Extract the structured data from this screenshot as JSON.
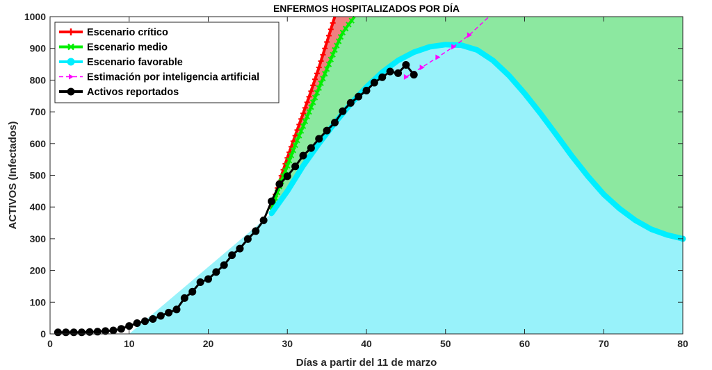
{
  "chart_data": {
    "type": "line",
    "title": "ENFERMOS HOSPITALIZADOS POR DÍA",
    "xlabel": "Días a partir del 11 de marzo",
    "ylabel": "ACTIVOS (Infectados)",
    "xlim": [
      0,
      80
    ],
    "ylim": [
      0,
      1000
    ],
    "xticks": [
      0,
      10,
      20,
      30,
      40,
      50,
      60,
      70,
      80
    ],
    "yticks": [
      0,
      100,
      200,
      300,
      400,
      500,
      600,
      700,
      800,
      900,
      1000
    ],
    "grid": false,
    "legend_position": "top-left",
    "series": [
      {
        "name": "Escenario crítico",
        "color": "#ff0000",
        "fill": "#f08080",
        "marker": "plus",
        "x": [
          28,
          29,
          30,
          31,
          32,
          33,
          34,
          35,
          36
        ],
        "y": [
          400,
          480,
          555,
          625,
          695,
          765,
          840,
          920,
          1000
        ]
      },
      {
        "name": "Escenario medio",
        "color": "#00ee00",
        "fill": "#8ce8a0",
        "marker": "x",
        "x": [
          28,
          29,
          30,
          31,
          32,
          33,
          34,
          35,
          36,
          37,
          38.5
        ],
        "y": [
          390,
          465,
          530,
          595,
          655,
          715,
          775,
          835,
          895,
          950,
          1000
        ]
      },
      {
        "name": "Escenario favorable",
        "color": "#00eeff",
        "fill": "#98f2fa",
        "marker": "circle",
        "x": [
          28,
          30,
          32,
          34,
          36,
          38,
          40,
          42,
          44,
          46,
          48,
          50,
          52,
          54,
          56,
          58,
          60,
          62,
          64,
          66,
          68,
          70,
          72,
          74,
          76,
          78,
          80
        ],
        "y": [
          380,
          450,
          530,
          600,
          665,
          725,
          778,
          825,
          862,
          888,
          905,
          912,
          910,
          895,
          862,
          815,
          758,
          695,
          628,
          560,
          497,
          440,
          395,
          358,
          330,
          312,
          300
        ]
      },
      {
        "name": "Estimación por inteligencia artificial",
        "color": "#ff00ff",
        "marker": "triangle-right",
        "dashed": true,
        "x": [
          45,
          47,
          49,
          51,
          53,
          55.5
        ],
        "y": [
          810,
          840,
          872,
          905,
          942,
          1000
        ]
      },
      {
        "name": "Activos reportados",
        "color": "#000000",
        "marker": "circle",
        "x": [
          1,
          2,
          3,
          4,
          5,
          6,
          7,
          8,
          9,
          10,
          11,
          12,
          13,
          14,
          15,
          16,
          17,
          18,
          19,
          20,
          21,
          22,
          23,
          24,
          25,
          26,
          27,
          28,
          29,
          30,
          31,
          32,
          33,
          34,
          35,
          36,
          37,
          38,
          39,
          40,
          41,
          42,
          43,
          44,
          45,
          46
        ],
        "y": [
          5,
          5,
          5,
          5,
          6,
          7,
          9,
          11,
          16,
          25,
          34,
          40,
          47,
          57,
          67,
          77,
          113,
          133,
          163,
          173,
          195,
          217,
          248,
          269,
          299,
          324,
          358,
          418,
          472,
          497,
          528,
          562,
          586,
          615,
          641,
          666,
          702,
          728,
          748,
          767,
          792,
          809,
          827,
          822,
          848,
          817
        ]
      }
    ]
  }
}
